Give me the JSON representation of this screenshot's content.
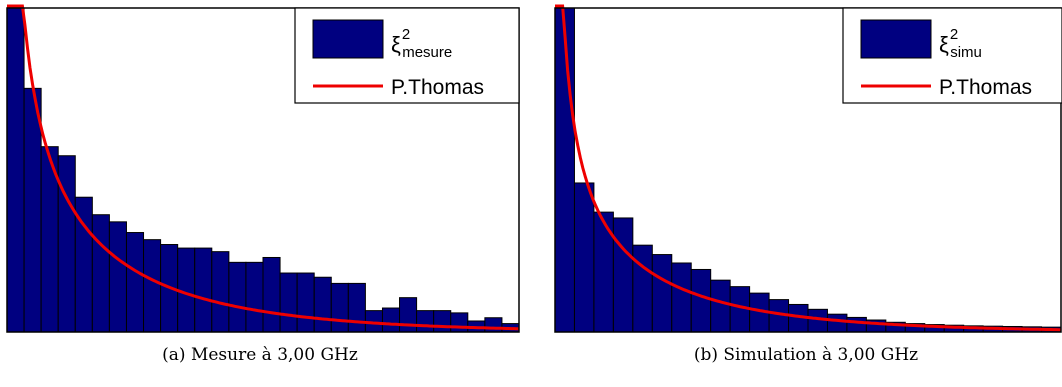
{
  "chart_data": [
    {
      "type": "bar",
      "ylim": [
        0,
        1
      ],
      "values": [
        1.0,
        0.752,
        0.572,
        0.544,
        0.416,
        0.362,
        0.34,
        0.307,
        0.285,
        0.27,
        0.259,
        0.259,
        0.248,
        0.215,
        0.215,
        0.23,
        0.182,
        0.182,
        0.169,
        0.15,
        0.15,
        0.066,
        0.074,
        0.106,
        0.066,
        0.066,
        0.059,
        0.034,
        0.044,
        0.026
      ],
      "legend": [
        {
          "symbol": "ξ",
          "sup": "2",
          "sub": "mesure",
          "style": "bar"
        },
        {
          "label": "P.Thomas",
          "style": "line"
        }
      ],
      "colors": {
        "bar": "#000080",
        "line": "#ee0000"
      },
      "caption": "(a) Mesure à 3,00 GHz"
    },
    {
      "type": "bar",
      "ylim": [
        0,
        1
      ],
      "values": [
        1.0,
        0.46,
        0.37,
        0.352,
        0.268,
        0.239,
        0.213,
        0.193,
        0.16,
        0.14,
        0.12,
        0.1,
        0.085,
        0.07,
        0.055,
        0.045,
        0.037,
        0.03,
        0.026,
        0.023,
        0.021,
        0.019,
        0.018,
        0.017,
        0.016,
        0.015
      ],
      "legend": [
        {
          "symbol": "ξ",
          "sup": "2",
          "sub": "simu",
          "style": "bar"
        },
        {
          "label": "P.Thomas",
          "style": "line"
        }
      ],
      "colors": {
        "bar": "#000080",
        "line": "#ee0000"
      },
      "caption": "(b) Simulation à 3,00 GHz"
    }
  ]
}
